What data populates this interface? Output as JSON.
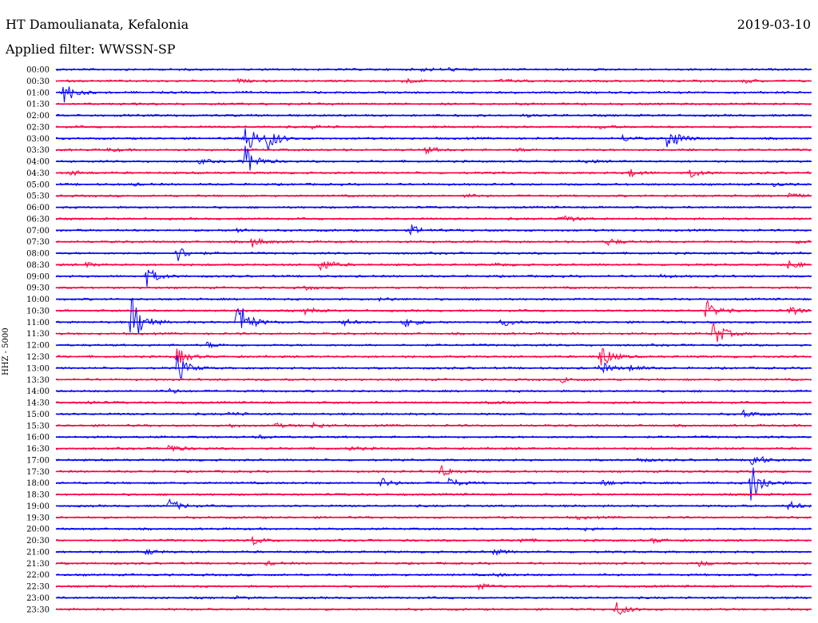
{
  "header": {
    "station": "HT Damoulianata, Kefalonia",
    "filter": "Applied filter: WWSSN-SP",
    "date": "2019-03-10"
  },
  "colors": {
    "even": "#0000ff",
    "odd": "#ff0040"
  },
  "chart_data": {
    "type": "line",
    "title": "HT Damoulianata, Kefalonia",
    "subtitle": "Applied filter: WWSSN-SP",
    "ylabel": "HHZ - 5000",
    "date": "2019-03-10",
    "rows": [
      "00:00",
      "00:30",
      "01:00",
      "01:30",
      "02:00",
      "02:30",
      "03:00",
      "03:30",
      "04:00",
      "04:30",
      "05:00",
      "05:30",
      "06:00",
      "06:30",
      "07:00",
      "07:30",
      "08:00",
      "08:30",
      "09:00",
      "09:30",
      "10:00",
      "10:30",
      "11:00",
      "11:30",
      "12:00",
      "12:30",
      "13:00",
      "13:30",
      "14:00",
      "14:30",
      "15:00",
      "15:30",
      "16:00",
      "16:30",
      "17:00",
      "17:30",
      "18:00",
      "18:30",
      "19:00",
      "19:30",
      "20:00",
      "20:30",
      "21:00",
      "21:30",
      "22:00",
      "22:30",
      "23:00",
      "23:30"
    ],
    "x_range_minutes": [
      0,
      30
    ],
    "grid": false,
    "events": [
      {
        "row": 0,
        "t": 0.485,
        "a": 0.3
      },
      {
        "row": 0,
        "t": 0.52,
        "a": 0.25
      },
      {
        "row": 1,
        "t": 0.24,
        "a": 0.25
      },
      {
        "row": 1,
        "t": 0.46,
        "a": 0.55
      },
      {
        "row": 1,
        "t": 0.59,
        "a": 0.3
      },
      {
        "row": 1,
        "t": 0.91,
        "a": 0.35
      },
      {
        "row": 2,
        "t": 0.01,
        "a": 2.2
      },
      {
        "row": 4,
        "t": 0.62,
        "a": 0.2
      },
      {
        "row": 5,
        "t": 0.34,
        "a": 0.25
      },
      {
        "row": 5,
        "t": 0.72,
        "a": 0.3
      },
      {
        "row": 6,
        "t": 0.25,
        "a": 3.5
      },
      {
        "row": 6,
        "t": 0.28,
        "a": 2.0
      },
      {
        "row": 6,
        "t": 0.75,
        "a": 0.6
      },
      {
        "row": 6,
        "t": 0.81,
        "a": 2.5
      },
      {
        "row": 7,
        "t": 0.07,
        "a": 0.3
      },
      {
        "row": 7,
        "t": 0.49,
        "a": 0.6
      },
      {
        "row": 7,
        "t": 0.61,
        "a": 0.25
      },
      {
        "row": 7,
        "t": 0.84,
        "a": 0.25
      },
      {
        "row": 8,
        "t": 0.19,
        "a": 0.4
      },
      {
        "row": 8,
        "t": 0.25,
        "a": 3.0
      },
      {
        "row": 8,
        "t": 0.7,
        "a": 0.3
      },
      {
        "row": 9,
        "t": 0.02,
        "a": 0.5
      },
      {
        "row": 9,
        "t": 0.76,
        "a": 0.7
      },
      {
        "row": 9,
        "t": 0.84,
        "a": 0.8
      },
      {
        "row": 10,
        "t": 0.1,
        "a": 0.2
      },
      {
        "row": 10,
        "t": 0.95,
        "a": 0.3
      },
      {
        "row": 11,
        "t": 0.54,
        "a": 0.3
      },
      {
        "row": 11,
        "t": 0.97,
        "a": 0.5
      },
      {
        "row": 13,
        "t": 0.67,
        "a": 0.9
      },
      {
        "row": 14,
        "t": 0.24,
        "a": 0.4
      },
      {
        "row": 14,
        "t": 0.47,
        "a": 0.9
      },
      {
        "row": 15,
        "t": 0.26,
        "a": 0.9
      },
      {
        "row": 15,
        "t": 0.73,
        "a": 0.7
      },
      {
        "row": 15,
        "t": 0.98,
        "a": 0.3
      },
      {
        "row": 16,
        "t": 0.16,
        "a": 1.5
      },
      {
        "row": 16,
        "t": 0.93,
        "a": 0.2
      },
      {
        "row": 17,
        "t": 0.04,
        "a": 0.4
      },
      {
        "row": 17,
        "t": 0.35,
        "a": 1.4
      },
      {
        "row": 17,
        "t": 0.58,
        "a": 0.3
      },
      {
        "row": 17,
        "t": 0.97,
        "a": 0.9
      },
      {
        "row": 18,
        "t": 0.12,
        "a": 1.8
      },
      {
        "row": 18,
        "t": 0.8,
        "a": 0.3
      },
      {
        "row": 19,
        "t": 0.33,
        "a": 0.3
      },
      {
        "row": 20,
        "t": 0.43,
        "a": 0.4
      },
      {
        "row": 21,
        "t": 0.33,
        "a": 0.6
      },
      {
        "row": 21,
        "t": 0.86,
        "a": 2.0
      },
      {
        "row": 21,
        "t": 0.97,
        "a": 1.0
      },
      {
        "row": 22,
        "t": 0.1,
        "a": 5.0
      },
      {
        "row": 22,
        "t": 0.24,
        "a": 4.5
      },
      {
        "row": 22,
        "t": 0.38,
        "a": 0.6
      },
      {
        "row": 22,
        "t": 0.46,
        "a": 1.0
      },
      {
        "row": 22,
        "t": 0.59,
        "a": 0.7
      },
      {
        "row": 23,
        "t": 0.87,
        "a": 2.5
      },
      {
        "row": 24,
        "t": 0.2,
        "a": 0.5
      },
      {
        "row": 25,
        "t": 0.16,
        "a": 1.6
      },
      {
        "row": 25,
        "t": 0.72,
        "a": 2.4
      },
      {
        "row": 26,
        "t": 0.16,
        "a": 2.5
      },
      {
        "row": 26,
        "t": 0.72,
        "a": 1.2
      },
      {
        "row": 26,
        "t": 0.76,
        "a": 0.6
      },
      {
        "row": 27,
        "t": 0.67,
        "a": 0.5
      },
      {
        "row": 28,
        "t": 0.15,
        "a": 0.4
      },
      {
        "row": 29,
        "t": 0.04,
        "a": 0.3
      },
      {
        "row": 29,
        "t": 0.57,
        "a": 0.3
      },
      {
        "row": 30,
        "t": 0.23,
        "a": 0.4
      },
      {
        "row": 30,
        "t": 0.91,
        "a": 0.7
      },
      {
        "row": 31,
        "t": 0.23,
        "a": 0.3
      },
      {
        "row": 31,
        "t": 0.29,
        "a": 0.4
      },
      {
        "row": 31,
        "t": 0.34,
        "a": 0.5
      },
      {
        "row": 32,
        "t": 0.27,
        "a": 0.3
      },
      {
        "row": 33,
        "t": 0.15,
        "a": 0.8
      },
      {
        "row": 33,
        "t": 0.39,
        "a": 0.4
      },
      {
        "row": 34,
        "t": 0.77,
        "a": 0.4
      },
      {
        "row": 34,
        "t": 0.92,
        "a": 1.5
      },
      {
        "row": 35,
        "t": 0.51,
        "a": 1.2
      },
      {
        "row": 36,
        "t": 0.43,
        "a": 0.9
      },
      {
        "row": 36,
        "t": 0.52,
        "a": 0.9
      },
      {
        "row": 36,
        "t": 0.72,
        "a": 0.6
      },
      {
        "row": 36,
        "t": 0.92,
        "a": 4.0
      },
      {
        "row": 38,
        "t": 0.15,
        "a": 1.3
      },
      {
        "row": 38,
        "t": 0.97,
        "a": 0.8
      },
      {
        "row": 39,
        "t": 0.69,
        "a": 0.3
      },
      {
        "row": 40,
        "t": 0.7,
        "a": 0.3
      },
      {
        "row": 41,
        "t": 0.26,
        "a": 0.8
      },
      {
        "row": 41,
        "t": 0.61,
        "a": 0.5
      },
      {
        "row": 41,
        "t": 0.79,
        "a": 0.4
      },
      {
        "row": 42,
        "t": 0.12,
        "a": 0.5
      },
      {
        "row": 42,
        "t": 0.58,
        "a": 0.5
      },
      {
        "row": 43,
        "t": 0.28,
        "a": 0.3
      },
      {
        "row": 43,
        "t": 0.85,
        "a": 0.5
      },
      {
        "row": 44,
        "t": 0.58,
        "a": 0.3
      },
      {
        "row": 45,
        "t": 0.56,
        "a": 0.5
      },
      {
        "row": 46,
        "t": 0.24,
        "a": 0.2
      },
      {
        "row": 47,
        "t": 0.74,
        "a": 1.5
      }
    ]
  }
}
